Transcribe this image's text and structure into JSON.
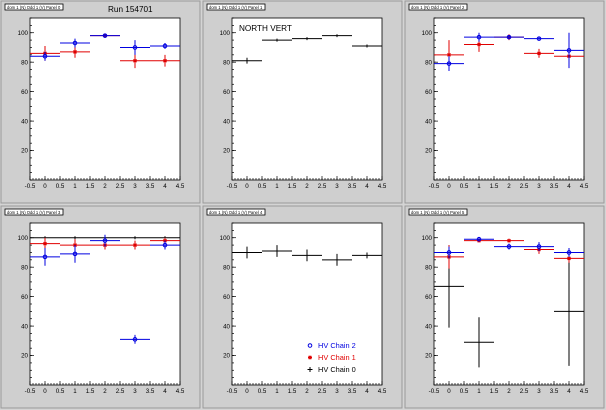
{
  "colors": {
    "chain2": "#0000e0",
    "chain1": "#e00000",
    "chain0": "#000000"
  },
  "legend": [
    {
      "series": "chain2",
      "label": "HV Chain 2",
      "marker": "open-circle"
    },
    {
      "series": "chain1",
      "label": "HV Chain 1",
      "marker": "star"
    },
    {
      "series": "chain0",
      "label": "HV Chain 0",
      "marker": "plus"
    }
  ],
  "chart_data": [
    {
      "type": "scatter",
      "pad_title": "dom 1 (N) Odd 1 (V) Panel 0",
      "annotation": "Run 154701",
      "xlim": [
        -0.5,
        4.5
      ],
      "ylim": [
        0,
        110
      ],
      "xticks": [
        "-0.5",
        "0",
        "0.5",
        "1",
        "1.5",
        "2",
        "2.5",
        "3",
        "3.5",
        "4",
        "4.5"
      ],
      "yticks": [
        "20",
        "40",
        "60",
        "80",
        "100"
      ],
      "series": [
        {
          "key": "chain1",
          "points": [
            {
              "x": 0,
              "y": 86,
              "ey": 5
            },
            {
              "x": 1,
              "y": 87,
              "ey": 4
            },
            {
              "x": 2,
              "y": 98,
              "ey": 1
            },
            {
              "x": 3,
              "y": 81,
              "ey": 5
            },
            {
              "x": 4,
              "y": 81,
              "ey": 4
            }
          ]
        },
        {
          "key": "chain2",
          "points": [
            {
              "x": 0,
              "y": 84,
              "ey": 3
            },
            {
              "x": 1,
              "y": 93,
              "ey": 3
            },
            {
              "x": 2,
              "y": 98,
              "ey": 1
            },
            {
              "x": 3,
              "y": 90,
              "ey": 5
            },
            {
              "x": 4,
              "y": 91,
              "ey": 2
            }
          ]
        }
      ]
    },
    {
      "type": "scatter",
      "pad_title": "dom 1 (N) Odd 1 (V) Panel 1",
      "annotation": "NORTH VERT",
      "xlim": [
        -0.5,
        4.5
      ],
      "ylim": [
        0,
        110
      ],
      "xticks": [
        "-0.5",
        "0",
        "0.5",
        "1",
        "1.5",
        "2",
        "2.5",
        "3",
        "3.5",
        "4",
        "4.5"
      ],
      "yticks": [
        "20",
        "40",
        "60",
        "80",
        "100"
      ],
      "series": [
        {
          "key": "chain0",
          "points": [
            {
              "x": 0,
              "y": 81,
              "ey": 2
            },
            {
              "x": 1,
              "y": 95,
              "ey": 1
            },
            {
              "x": 2,
              "y": 96,
              "ey": 1
            },
            {
              "x": 3,
              "y": 98,
              "ey": 1
            },
            {
              "x": 4,
              "y": 91,
              "ey": 1
            }
          ]
        }
      ]
    },
    {
      "type": "scatter",
      "pad_title": "dom 1 (N) Odd 1 (V) Panel 2",
      "annotation": "",
      "xlim": [
        -0.5,
        4.5
      ],
      "ylim": [
        0,
        110
      ],
      "xticks": [
        "-0.5",
        "0",
        "0.5",
        "1",
        "1.5",
        "2",
        "2.5",
        "3",
        "3.5",
        "4",
        "4.5"
      ],
      "yticks": [
        "20",
        "40",
        "60",
        "80",
        "100"
      ],
      "series": [
        {
          "key": "chain1",
          "points": [
            {
              "x": 0,
              "y": 85,
              "ey": 10
            },
            {
              "x": 1,
              "y": 92,
              "ey": 5
            },
            {
              "x": 2,
              "y": 97,
              "ey": 2
            },
            {
              "x": 3,
              "y": 86,
              "ey": 3
            },
            {
              "x": 4,
              "y": 84,
              "ey": 4
            }
          ]
        },
        {
          "key": "chain2",
          "points": [
            {
              "x": 0,
              "y": 79,
              "ey": 5
            },
            {
              "x": 1,
              "y": 97,
              "ey": 3
            },
            {
              "x": 2,
              "y": 97,
              "ey": 1
            },
            {
              "x": 3,
              "y": 96,
              "ey": 1
            },
            {
              "x": 4,
              "y": 88,
              "ey": 12
            }
          ]
        }
      ]
    },
    {
      "type": "scatter",
      "pad_title": "dom 1 (N) Odd 1 (V) Panel 3",
      "annotation": "",
      "xlim": [
        -0.5,
        4.5
      ],
      "ylim": [
        0,
        110
      ],
      "xticks": [
        "-0.5",
        "0",
        "0.5",
        "1",
        "1.5",
        "2",
        "2.5",
        "3",
        "3.5",
        "4",
        "4.5"
      ],
      "yticks": [
        "20",
        "40",
        "60",
        "80",
        "100"
      ],
      "series": [
        {
          "key": "chain0",
          "points": [
            {
              "x": 0,
              "y": 100,
              "ey": 1
            },
            {
              "x": 1,
              "y": 100,
              "ey": 1
            },
            {
              "x": 2,
              "y": 100,
              "ey": 1
            },
            {
              "x": 3,
              "y": 100,
              "ey": 1
            },
            {
              "x": 4,
              "y": 100,
              "ey": 1
            }
          ]
        },
        {
          "key": "chain1",
          "points": [
            {
              "x": 0,
              "y": 96,
              "ey": 4
            },
            {
              "x": 1,
              "y": 95,
              "ey": 4
            },
            {
              "x": 2,
              "y": 95,
              "ey": 3
            },
            {
              "x": 3,
              "y": 95,
              "ey": 3
            },
            {
              "x": 4,
              "y": 98,
              "ey": 2
            }
          ]
        },
        {
          "key": "chain2",
          "points": [
            {
              "x": 0,
              "y": 87,
              "ey": 6
            },
            {
              "x": 1,
              "y": 89,
              "ey": 6
            },
            {
              "x": 2,
              "y": 98,
              "ey": 4
            },
            {
              "x": 3,
              "y": 31,
              "ey": 3
            },
            {
              "x": 4,
              "y": 95,
              "ey": 3
            }
          ]
        }
      ]
    },
    {
      "type": "scatter",
      "pad_title": "dom 1 (N) Odd 1 (V) Panel 4",
      "annotation": "",
      "xlim": [
        -0.5,
        4.5
      ],
      "ylim": [
        0,
        110
      ],
      "xticks": [
        "-0.5",
        "0",
        "0.5",
        "1",
        "1.5",
        "2",
        "2.5",
        "3",
        "3.5",
        "4",
        "4.5"
      ],
      "yticks": [
        "20",
        "40",
        "60",
        "80",
        "100"
      ],
      "show_legend": true,
      "series": [
        {
          "key": "chain0",
          "points": [
            {
              "x": 0,
              "y": 90,
              "ey": 4
            },
            {
              "x": 1,
              "y": 91,
              "ey": 4
            },
            {
              "x": 2,
              "y": 88,
              "ey": 4
            },
            {
              "x": 3,
              "y": 85,
              "ey": 4
            },
            {
              "x": 4,
              "y": 88,
              "ey": 2
            }
          ]
        }
      ]
    },
    {
      "type": "scatter",
      "pad_title": "dom 1 (N) Odd 1 (V) Panel 5",
      "annotation": "",
      "xlim": [
        -0.5,
        4.5
      ],
      "ylim": [
        0,
        110
      ],
      "xticks": [
        "-0.5",
        "0",
        "0.5",
        "1",
        "1.5",
        "2",
        "2.5",
        "3",
        "3.5",
        "4",
        "4.5"
      ],
      "yticks": [
        "20",
        "40",
        "60",
        "80",
        "100"
      ],
      "series": [
        {
          "key": "chain0",
          "points": [
            {
              "x": 0,
              "y": 67,
              "ey": 28
            },
            {
              "x": 1,
              "y": 29,
              "ey": 17
            },
            {
              "x": 4,
              "y": 50,
              "ey": 37
            }
          ]
        },
        {
          "key": "chain1",
          "points": [
            {
              "x": 0,
              "y": 87,
              "ey": 8
            },
            {
              "x": 1,
              "y": 98,
              "ey": 1
            },
            {
              "x": 2,
              "y": 98,
              "ey": 1
            },
            {
              "x": 3,
              "y": 92,
              "ey": 3
            },
            {
              "x": 4,
              "y": 86,
              "ey": 3
            }
          ]
        },
        {
          "key": "chain2",
          "points": [
            {
              "x": 0,
              "y": 90,
              "ey": 4
            },
            {
              "x": 1,
              "y": 99,
              "ey": 1
            },
            {
              "x": 2,
              "y": 94,
              "ey": 2
            },
            {
              "x": 3,
              "y": 94,
              "ey": 3
            },
            {
              "x": 4,
              "y": 90,
              "ey": 3
            }
          ]
        }
      ]
    }
  ]
}
